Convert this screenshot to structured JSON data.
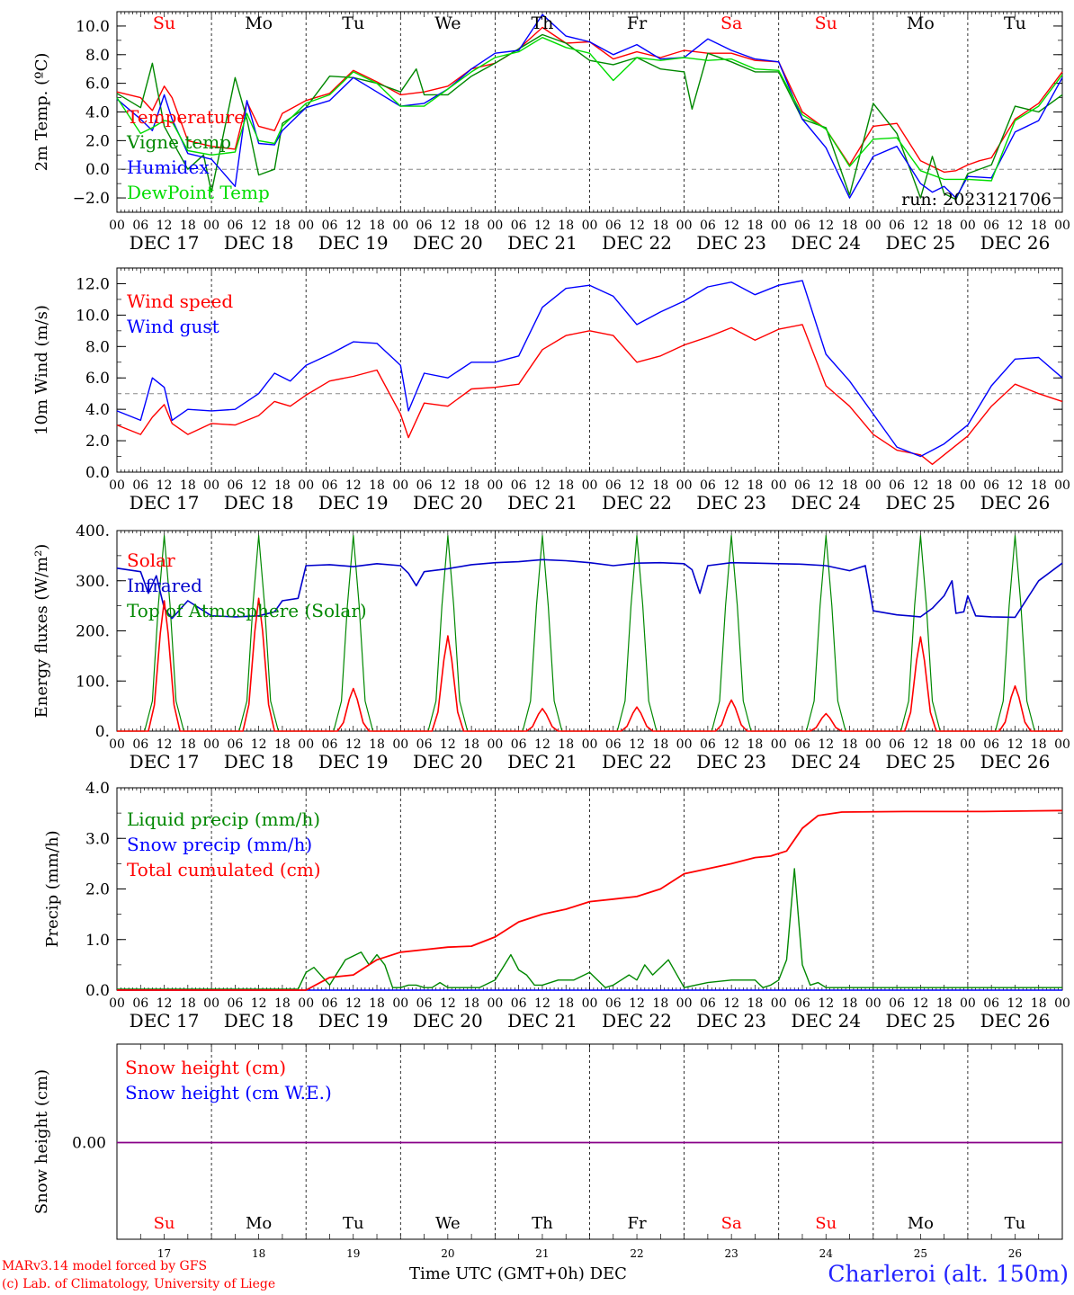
{
  "chart_data": [
    {
      "type": "line",
      "panel": "temperature",
      "ylabel": "2m Temp. (ºC)",
      "ylim": [
        -3,
        11
      ],
      "yticks": [
        -2,
        0,
        2,
        4,
        6,
        8,
        10
      ],
      "ytick_labels": [
        "−2.0",
        "0.0",
        "2.0",
        "4.0",
        "6.0",
        "8.0",
        "10.0"
      ],
      "reference_line": 0,
      "x_unit": "hours since 2023-12-17 00 UTC",
      "xlim": [
        0,
        240
      ],
      "run_label": "run: 2023121706",
      "weekdays": [
        "Su",
        "Mo",
        "Tu",
        "We",
        "Th",
        "Fr",
        "Sa",
        "Su",
        "Mo",
        "Tu"
      ],
      "weekday_colors": [
        "#ff0000",
        "#000000",
        "#000000",
        "#000000",
        "#000000",
        "#000000",
        "#ff0000",
        "#ff0000",
        "#000000",
        "#000000"
      ],
      "series": [
        {
          "name": "Temperature",
          "color": "#ff0000",
          "x": [
            0,
            6,
            9,
            12,
            14,
            18,
            24,
            30,
            33,
            36,
            40,
            42,
            48,
            54,
            60,
            66,
            72,
            78,
            84,
            90,
            96,
            102,
            108,
            114,
            120,
            126,
            132,
            138,
            144,
            150,
            156,
            162,
            168,
            174,
            180,
            186,
            192,
            198,
            204,
            210,
            213,
            216,
            219,
            222,
            228,
            234,
            240
          ],
          "y": [
            5.4,
            5.0,
            4.1,
            5.8,
            5.0,
            2.0,
            1.6,
            1.4,
            4.7,
            3.0,
            2.7,
            3.9,
            4.8,
            5.3,
            6.9,
            6.1,
            5.2,
            5.4,
            5.8,
            7.0,
            7.4,
            8.4,
            9.9,
            8.8,
            8.9,
            7.7,
            8.2,
            7.8,
            8.3,
            8.1,
            8.1,
            7.6,
            7.5,
            4.0,
            2.8,
            0.3,
            3.0,
            3.2,
            0.6,
            -0.2,
            -0.1,
            0.3,
            0.6,
            0.8,
            3.5,
            4.6,
            6.8
          ]
        },
        {
          "name": "Vigne temp",
          "color": "#008800",
          "x": [
            0,
            6,
            9,
            12,
            14,
            18,
            22,
            24,
            30,
            33,
            36,
            40,
            42,
            48,
            54,
            60,
            66,
            72,
            76,
            78,
            84,
            90,
            96,
            102,
            108,
            114,
            120,
            126,
            132,
            138,
            144,
            146,
            150,
            156,
            162,
            168,
            174,
            180,
            186,
            192,
            198,
            204,
            207,
            210,
            213,
            216,
            222,
            228,
            234,
            240
          ],
          "y": [
            5.3,
            4.3,
            7.4,
            3.0,
            2.0,
            0.0,
            1.0,
            -1.6,
            6.4,
            3.5,
            -0.4,
            0.0,
            3.2,
            4.3,
            6.5,
            6.4,
            6.0,
            5.4,
            7.0,
            5.2,
            5.2,
            6.5,
            7.4,
            8.4,
            9.4,
            8.8,
            7.6,
            7.3,
            7.8,
            7.0,
            6.8,
            4.2,
            8.1,
            7.5,
            6.8,
            6.8,
            3.5,
            2.9,
            -1.8,
            4.6,
            2.5,
            -2.0,
            0.9,
            -1.7,
            -2.1,
            -0.3,
            0.3,
            4.4,
            4.0,
            5.2
          ]
        },
        {
          "name": "Humidex",
          "color": "#0000ff",
          "x": [
            0,
            6,
            9,
            12,
            14,
            18,
            24,
            30,
            33,
            36,
            40,
            42,
            48,
            54,
            60,
            66,
            72,
            78,
            84,
            90,
            96,
            102,
            108,
            114,
            120,
            126,
            132,
            138,
            144,
            150,
            156,
            162,
            168,
            174,
            180,
            186,
            192,
            198,
            204,
            207,
            210,
            213,
            216,
            222,
            228,
            234,
            240
          ],
          "y": [
            4.9,
            3.5,
            2.7,
            5.2,
            3.5,
            1.1,
            0.7,
            -1.2,
            4.8,
            1.8,
            1.7,
            2.7,
            4.3,
            4.8,
            6.4,
            5.4,
            4.4,
            4.6,
            5.6,
            7.0,
            8.1,
            8.3,
            10.8,
            9.3,
            8.9,
            8.0,
            8.7,
            7.7,
            7.8,
            9.1,
            8.3,
            7.7,
            7.5,
            3.5,
            1.5,
            -2.0,
            0.9,
            1.6,
            -1.0,
            -1.6,
            -1.2,
            -2.0,
            -0.5,
            -0.6,
            2.6,
            3.4,
            6.4
          ]
        },
        {
          "name": "DewPoint Temp",
          "color": "#00dd00",
          "x": [
            0,
            6,
            9,
            12,
            14,
            18,
            24,
            30,
            33,
            36,
            40,
            42,
            48,
            54,
            60,
            66,
            72,
            78,
            84,
            90,
            96,
            102,
            108,
            114,
            120,
            126,
            132,
            138,
            144,
            150,
            156,
            162,
            168,
            174,
            180,
            186,
            192,
            198,
            204,
            210,
            216,
            222,
            228,
            234,
            240
          ],
          "y": [
            5.0,
            2.5,
            2.9,
            3.4,
            3.3,
            1.3,
            1.0,
            1.2,
            3.9,
            2.0,
            1.8,
            3.0,
            4.6,
            5.2,
            6.8,
            6.0,
            4.4,
            4.4,
            5.6,
            6.8,
            7.8,
            8.2,
            9.2,
            8.5,
            8.1,
            6.2,
            7.8,
            7.6,
            7.8,
            7.6,
            7.7,
            7.0,
            6.9,
            3.8,
            2.8,
            0.2,
            2.1,
            2.2,
            -0.1,
            -0.7,
            -0.7,
            -0.8,
            3.4,
            4.4,
            6.6
          ]
        }
      ]
    },
    {
      "type": "line",
      "panel": "wind",
      "ylabel": "10m Wind (m/s)",
      "ylim": [
        0,
        13
      ],
      "yticks": [
        0,
        2,
        4,
        6,
        8,
        10,
        12
      ],
      "ytick_labels": [
        "0.0",
        "2.0",
        "4.0",
        "6.0",
        "8.0",
        "10.0",
        "12.0"
      ],
      "reference_line": 5,
      "xlim": [
        0,
        240
      ],
      "series": [
        {
          "name": "Wind speed",
          "color": "#ff0000",
          "x": [
            0,
            6,
            9,
            12,
            14,
            18,
            24,
            30,
            36,
            40,
            44,
            48,
            54,
            60,
            66,
            72,
            74,
            78,
            84,
            90,
            96,
            102,
            108,
            114,
            120,
            126,
            132,
            138,
            144,
            150,
            156,
            162,
            168,
            174,
            180,
            186,
            192,
            198,
            204,
            207,
            210,
            216,
            222,
            228,
            234,
            240
          ],
          "y": [
            3.0,
            2.4,
            3.5,
            4.3,
            3.1,
            2.4,
            3.1,
            3.0,
            3.6,
            4.5,
            4.2,
            4.9,
            5.8,
            6.1,
            6.5,
            3.7,
            2.2,
            4.4,
            4.2,
            5.3,
            5.4,
            5.6,
            7.8,
            8.7,
            9.0,
            8.7,
            7.0,
            7.4,
            8.1,
            8.6,
            9.2,
            8.4,
            9.1,
            9.4,
            5.5,
            4.2,
            2.4,
            1.4,
            1.1,
            0.5,
            1.1,
            2.3,
            4.2,
            5.6,
            5.0,
            4.5
          ]
        },
        {
          "name": "Wind gust",
          "color": "#0000ff",
          "x": [
            0,
            6,
            9,
            12,
            14,
            18,
            24,
            30,
            36,
            40,
            44,
            48,
            54,
            60,
            66,
            72,
            74,
            78,
            84,
            90,
            96,
            102,
            108,
            114,
            120,
            126,
            132,
            138,
            144,
            150,
            156,
            162,
            168,
            174,
            180,
            186,
            192,
            198,
            204,
            207,
            210,
            216,
            222,
            228,
            234,
            240
          ],
          "y": [
            3.9,
            3.3,
            6.0,
            5.4,
            3.3,
            4.0,
            3.9,
            4.0,
            5.0,
            6.3,
            5.8,
            6.8,
            7.5,
            8.3,
            8.2,
            6.8,
            3.9,
            6.3,
            6.0,
            7.0,
            7.0,
            7.4,
            10.5,
            11.7,
            11.9,
            11.2,
            9.4,
            10.2,
            10.9,
            11.8,
            12.1,
            11.3,
            11.9,
            12.2,
            7.5,
            5.8,
            3.7,
            1.6,
            1.0,
            1.4,
            1.8,
            3.0,
            5.5,
            7.2,
            7.3,
            6.0
          ]
        }
      ]
    },
    {
      "type": "line",
      "panel": "energy",
      "ylabel": "Energy fluxes (W/m²)",
      "ylim": [
        0,
        400
      ],
      "yticks": [
        0,
        100,
        200,
        300,
        400
      ],
      "ytick_labels": [
        "0.",
        "100.",
        "200.",
        "300.",
        "400."
      ],
      "xlim": [
        0,
        240
      ],
      "solar_peaks": [
        260,
        265,
        85,
        190,
        45,
        48,
        62,
        35,
        188,
        90
      ],
      "toa_peak": 390,
      "series": [
        {
          "name": "Solar",
          "color": "#ff0000"
        },
        {
          "name": "Infrared",
          "color": "#0000cc",
          "x": [
            0,
            6,
            8,
            10,
            12,
            14,
            18,
            24,
            30,
            36,
            40,
            42,
            46,
            48,
            54,
            60,
            66,
            72,
            74,
            76,
            78,
            84,
            90,
            96,
            102,
            108,
            114,
            120,
            126,
            132,
            138,
            144,
            146,
            148,
            150,
            156,
            162,
            168,
            174,
            180,
            186,
            190,
            192,
            198,
            204,
            207,
            210,
            212,
            213,
            215,
            216,
            218,
            222,
            228,
            234,
            240
          ],
          "y": [
            325,
            318,
            275,
            310,
            245,
            225,
            260,
            230,
            228,
            230,
            238,
            260,
            265,
            330,
            332,
            328,
            334,
            330,
            315,
            290,
            318,
            324,
            332,
            336,
            338,
            342,
            340,
            336,
            330,
            335,
            336,
            334,
            322,
            275,
            330,
            336,
            335,
            334,
            333,
            330,
            320,
            330,
            240,
            232,
            228,
            245,
            270,
            300,
            235,
            238,
            270,
            230,
            228,
            227,
            300,
            335
          ]
        },
        {
          "name": "Top of Atmosphere (Solar)",
          "color": "#008800"
        }
      ]
    },
    {
      "type": "line",
      "panel": "precip",
      "ylabel": "Precip (mm/h)",
      "ylim": [
        0,
        4
      ],
      "yticks": [
        0,
        1,
        2,
        3,
        4
      ],
      "ytick_labels": [
        "0.0",
        "1.0",
        "2.0",
        "3.0",
        "4.0"
      ],
      "xlim": [
        0,
        240
      ],
      "series": [
        {
          "name": "Liquid precip (mm/h)",
          "color": "#008800",
          "x": [
            0,
            46,
            48,
            50,
            54,
            58,
            62,
            64,
            66,
            68,
            70,
            72,
            74,
            76,
            78,
            80,
            82,
            84,
            88,
            92,
            96,
            98,
            100,
            102,
            104,
            106,
            108,
            112,
            116,
            120,
            124,
            126,
            128,
            130,
            132,
            134,
            136,
            140,
            144,
            150,
            156,
            162,
            164,
            166,
            168,
            170,
            172,
            174,
            176,
            178,
            180,
            182,
            184,
            240
          ],
          "y": [
            0.02,
            0.02,
            0.35,
            0.45,
            0.1,
            0.6,
            0.75,
            0.5,
            0.7,
            0.5,
            0.05,
            0.05,
            0.1,
            0.1,
            0.05,
            0.05,
            0.15,
            0.05,
            0.05,
            0.05,
            0.2,
            0.45,
            0.7,
            0.4,
            0.3,
            0.1,
            0.1,
            0.2,
            0.2,
            0.35,
            0.05,
            0.1,
            0.2,
            0.3,
            0.2,
            0.5,
            0.3,
            0.6,
            0.05,
            0.15,
            0.2,
            0.2,
            0.05,
            0.1,
            0.2,
            0.6,
            2.4,
            0.5,
            0.1,
            0.15,
            0.05,
            0.05,
            0.05,
            0.05
          ]
        },
        {
          "name": "Snow precip (mm/h)",
          "color": "#0000ff",
          "x": [
            0,
            240
          ],
          "y": [
            0,
            0
          ]
        },
        {
          "name": "Total cumulated (cm)",
          "color": "#ff0000",
          "x": [
            0,
            48,
            54,
            60,
            66,
            72,
            78,
            84,
            90,
            96,
            102,
            108,
            114,
            120,
            126,
            132,
            138,
            144,
            150,
            156,
            162,
            166,
            170,
            174,
            178,
            184,
            200,
            220,
            240
          ],
          "y": [
            0,
            0,
            0.25,
            0.3,
            0.6,
            0.75,
            0.8,
            0.85,
            0.87,
            1.05,
            1.35,
            1.5,
            1.6,
            1.75,
            1.8,
            1.85,
            2.0,
            2.3,
            2.4,
            2.5,
            2.62,
            2.65,
            2.75,
            3.2,
            3.45,
            3.52,
            3.53,
            3.53,
            3.55
          ]
        }
      ]
    },
    {
      "type": "line",
      "panel": "snow",
      "ylabel": "Snow height (cm)",
      "ytick_labels": [
        "0.00"
      ],
      "xlim": [
        0,
        240
      ],
      "series": [
        {
          "name": "Snow height (cm)",
          "color": "#ff0000",
          "x": [
            0,
            240
          ],
          "y": [
            0,
            0
          ]
        },
        {
          "name": "Snow height (cm W.E.)",
          "color": "#0000ff",
          "x": [
            0,
            240
          ],
          "y": [
            0,
            0
          ]
        }
      ]
    }
  ],
  "axis": {
    "hour_labels": [
      "00",
      "06",
      "12",
      "18"
    ],
    "final_hour_label": "00",
    "date_labels": [
      "DEC 17",
      "DEC 18",
      "DEC 19",
      "DEC 20",
      "DEC 21",
      "DEC 22",
      "DEC 23",
      "DEC 24",
      "DEC 25",
      "DEC 26"
    ],
    "day_numbers": [
      "17",
      "18",
      "19",
      "20",
      "21",
      "22",
      "23",
      "24",
      "25",
      "26"
    ],
    "month": "DEC",
    "title": "Time UTC (GMT+0h)"
  },
  "footer": {
    "credit_line1": "MARv3.14 model forced by GFS",
    "credit_line2": "(c) Lab. of Climatology, University of Liege",
    "station": "Charleroi (alt. 150m)"
  },
  "colors": {
    "red": "#ff0000",
    "blue": "#0000ff",
    "green": "#008800",
    "lightgreen": "#00dd00",
    "purple": "#880088"
  }
}
